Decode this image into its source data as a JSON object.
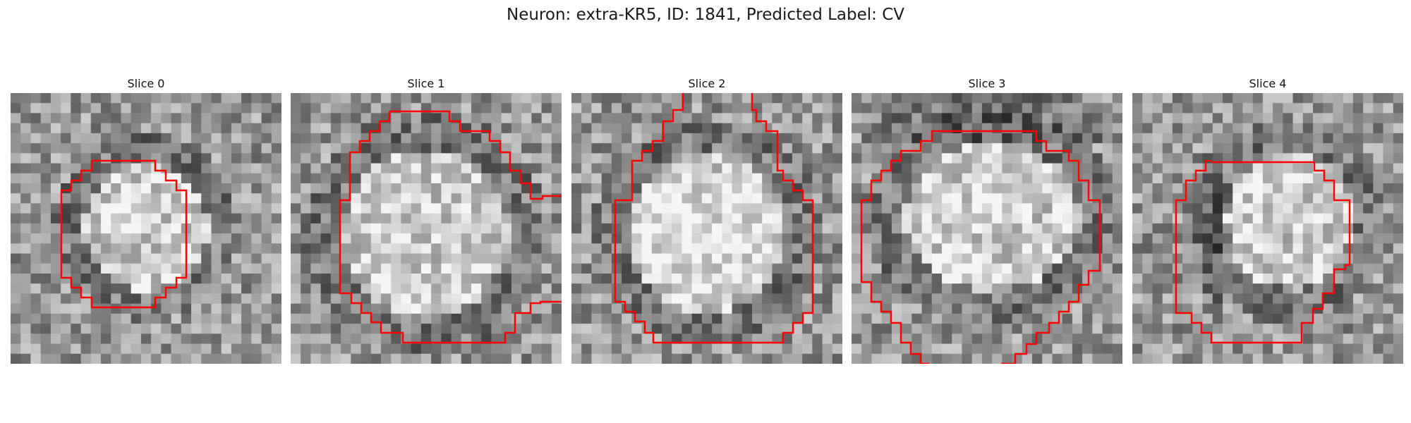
{
  "figure": {
    "title": "Neuron: extra-KR5, ID: 1841, Predicted Label: CV"
  },
  "panels": [
    {
      "title": "Slice 0",
      "seed": 11,
      "blob": [
        0.5,
        0.5,
        0.27,
        0.27
      ],
      "ring": "dark-ring",
      "contour": "small-octagon"
    },
    {
      "title": "Slice 1",
      "seed": 23,
      "blob": [
        0.5,
        0.52,
        0.36,
        0.36
      ],
      "ring": "noisy",
      "contour": "large-octagon-open"
    },
    {
      "title": "Slice 2",
      "seed": 37,
      "blob": [
        0.5,
        0.52,
        0.34,
        0.34
      ],
      "ring": "bright-center",
      "contour": "large-octagon-top-open"
    },
    {
      "title": "Slice 3",
      "seed": 49,
      "blob": [
        0.52,
        0.46,
        0.38,
        0.32
      ],
      "ring": "dark-top",
      "contour": "wide-octagon-bottom-open"
    },
    {
      "title": "Slice 4",
      "seed": 61,
      "blob": [
        0.58,
        0.47,
        0.27,
        0.3
      ],
      "ring": "dark-left",
      "contour": "medium-octagon"
    }
  ],
  "colors": {
    "contour": "#ff0000",
    "background": "#ffffff"
  }
}
